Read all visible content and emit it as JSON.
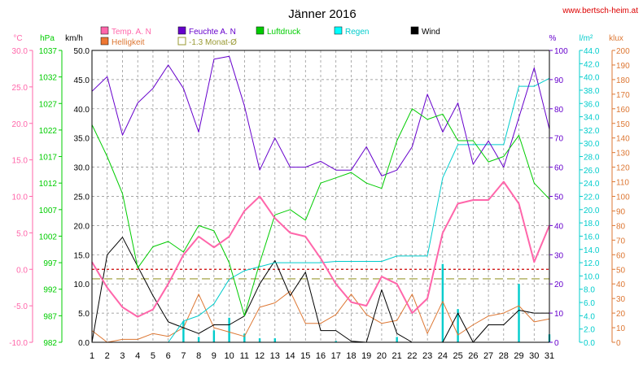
{
  "page": {
    "title": "Jänner 2016",
    "website": "www.bertsch-heim.at",
    "unit_headers": {
      "temp": "°C",
      "pressure": "hPa",
      "wind": "km/h",
      "humidity": "%",
      "rain": "l/m²",
      "light": "klux"
    }
  },
  "chart_data": {
    "type": "line",
    "title": "Jänner 2016",
    "x": [
      1,
      2,
      3,
      4,
      5,
      6,
      7,
      8,
      9,
      10,
      11,
      12,
      13,
      14,
      15,
      16,
      17,
      18,
      19,
      20,
      21,
      22,
      23,
      24,
      25,
      26,
      27,
      28,
      29,
      30,
      31
    ],
    "axes": {
      "temp": {
        "unit": "°C",
        "min": -10,
        "max": 30,
        "ticks": [
          "30.0",
          "25.0",
          "20.0",
          "15.0",
          "10.0",
          "5.0",
          "0.0",
          "-5.0",
          "-10.0"
        ],
        "color": "#ff66aa"
      },
      "pressure": {
        "unit": "hPa",
        "min": 982,
        "max": 1037,
        "ticks": [
          "1037",
          "1032",
          "1027",
          "1022",
          "1017",
          "1012",
          "1007",
          "1002",
          "997",
          "992",
          "987",
          "982"
        ],
        "color": "#00cc00"
      },
      "wind": {
        "unit": "km/h",
        "min": 0,
        "max": 50,
        "ticks": [
          "50.0",
          "45.0",
          "40.0",
          "35.0",
          "30.0",
          "25.0",
          "20.0",
          "15.0",
          "10.0",
          "5.0",
          "0.0"
        ],
        "color": "#000000"
      },
      "humidity": {
        "unit": "%",
        "min": 0,
        "max": 100,
        "ticks": [
          "100",
          "90",
          "80",
          "70",
          "60",
          "50",
          "40",
          "30",
          "20",
          "10",
          "0"
        ],
        "color": "#6600cc"
      },
      "rain": {
        "unit": "l/m²",
        "min": 0,
        "max": 44,
        "ticks": [
          "44.0",
          "42.0",
          "40.0",
          "38.0",
          "36.0",
          "34.0",
          "32.0",
          "30.0",
          "28.0",
          "26.0",
          "24.0",
          "22.0",
          "20.0",
          "18.0",
          "16.0",
          "14.0",
          "12.0",
          "10.0",
          "8.0",
          "6.0",
          "4.0",
          "2.0",
          "0.0"
        ],
        "color": "#00cccc"
      },
      "light": {
        "unit": "klux",
        "min": 0,
        "max": 200,
        "ticks": [
          "200",
          "190",
          "180",
          "170",
          "160",
          "150",
          "140",
          "130",
          "120",
          "110",
          "100",
          "90",
          "80",
          "70",
          "60",
          "50",
          "40",
          "30",
          "20",
          "10",
          "0"
        ],
        "color": "#dd7733"
      }
    },
    "grid": true,
    "legend": [
      {
        "name": "Temp. A. N",
        "color": "#ff66aa",
        "style": "filled"
      },
      {
        "name": "Feuchte A. N",
        "color": "#6600cc",
        "style": "filled"
      },
      {
        "name": "Luftdruck",
        "color": "#00cc00",
        "style": "filled"
      },
      {
        "name": "Regen",
        "color": "#00cccc",
        "style": "filled"
      },
      {
        "name": "Wind",
        "color": "#000000",
        "style": "filled"
      },
      {
        "name": "Helligkeit",
        "color": "#ee7733",
        "style": "filled"
      },
      {
        "name": "-1.3 Monat-Ø",
        "color": "#999933",
        "style": "outline"
      }
    ],
    "series": [
      {
        "name": "Temp. A. N",
        "axis": "temp",
        "color": "#ff66aa",
        "width": 2,
        "values": [
          1.0,
          -2.5,
          -5.2,
          -6.5,
          -5.5,
          -2.0,
          2.0,
          4.5,
          3.0,
          4.5,
          8.0,
          10.0,
          7.0,
          5.0,
          4.5,
          1.5,
          -2.0,
          -4.5,
          -5.0,
          -1.0,
          -2.0,
          -6.0,
          -4.0,
          5.0,
          9.0,
          9.5,
          9.5,
          12.0,
          9.0,
          1.0,
          6.0
        ]
      },
      {
        "name": "Feuchte A. N",
        "axis": "humidity",
        "color": "#6600cc",
        "width": 1,
        "values": [
          86,
          91,
          71,
          82,
          87,
          95,
          87,
          72,
          97,
          98,
          81,
          59,
          70,
          60,
          60,
          62,
          59,
          59,
          67,
          57,
          59,
          67,
          85,
          72,
          82,
          61,
          69,
          60,
          77,
          94,
          73
        ]
      },
      {
        "name": "Luftdruck",
        "axis": "pressure",
        "color": "#00cc00",
        "width": 1,
        "values": [
          1023,
          1017,
          1010,
          996,
          1000,
          1001,
          999,
          1004,
          1003,
          997,
          987,
          997,
          1006,
          1007,
          1005,
          1012,
          1013,
          1014,
          1012,
          1011,
          1020,
          1026,
          1024,
          1025,
          1020,
          1020,
          1016,
          1017,
          1021,
          1012,
          1009
        ]
      },
      {
        "name": "Regen",
        "axis": "rain",
        "color": "#00cccc",
        "width": 1,
        "cumulative": true,
        "values": [
          0,
          0,
          0,
          0,
          0,
          0,
          3.2,
          4.0,
          5.8,
          9.5,
          10.8,
          11.4,
          12.0,
          12.0,
          12.0,
          12.0,
          12.2,
          12.2,
          12.2,
          12.2,
          13.0,
          13.0,
          13.0,
          24.8,
          29.8,
          29.8,
          29.8,
          29.8,
          38.6,
          38.6,
          39.8
        ]
      },
      {
        "name": "Wind",
        "axis": "wind",
        "color": "#000000",
        "width": 1,
        "values": [
          0,
          15,
          18,
          13,
          8,
          3.5,
          2.5,
          1.5,
          3,
          3,
          4.5,
          10,
          14,
          8,
          12,
          2,
          2,
          0.2,
          0,
          9,
          1.5,
          0,
          0,
          0,
          5,
          0,
          3,
          3,
          5.5,
          5,
          5
        ]
      },
      {
        "name": "Helligkeit",
        "axis": "light",
        "color": "#dd7733",
        "width": 1,
        "values": [
          8,
          0,
          2,
          2,
          6,
          4,
          10,
          33,
          10,
          7,
          4,
          24,
          27,
          35,
          13,
          13,
          19,
          33,
          19,
          13,
          15,
          33,
          6,
          28,
          5,
          12,
          18,
          20,
          25,
          14,
          16
        ]
      }
    ],
    "rain_daily": {
      "axis": "rain",
      "color": "#00cccc",
      "values": [
        0,
        0,
        0,
        0,
        0,
        0,
        3.2,
        0.8,
        1.8,
        3.7,
        1.3,
        0.6,
        0.6,
        0,
        0,
        0,
        0.2,
        0,
        0,
        0,
        0.8,
        0,
        0,
        11.8,
        5.0,
        0,
        0,
        0,
        8.8,
        0,
        1.2
      ]
    },
    "reference_lines": [
      {
        "label": "-1.3 Monat-Ø",
        "axis": "temp",
        "value": -1.3,
        "color": "#999933",
        "dash": "10,5"
      },
      {
        "axis": "temp",
        "value": 0.0,
        "color": "#cc0000",
        "dash": "3,3"
      }
    ]
  }
}
